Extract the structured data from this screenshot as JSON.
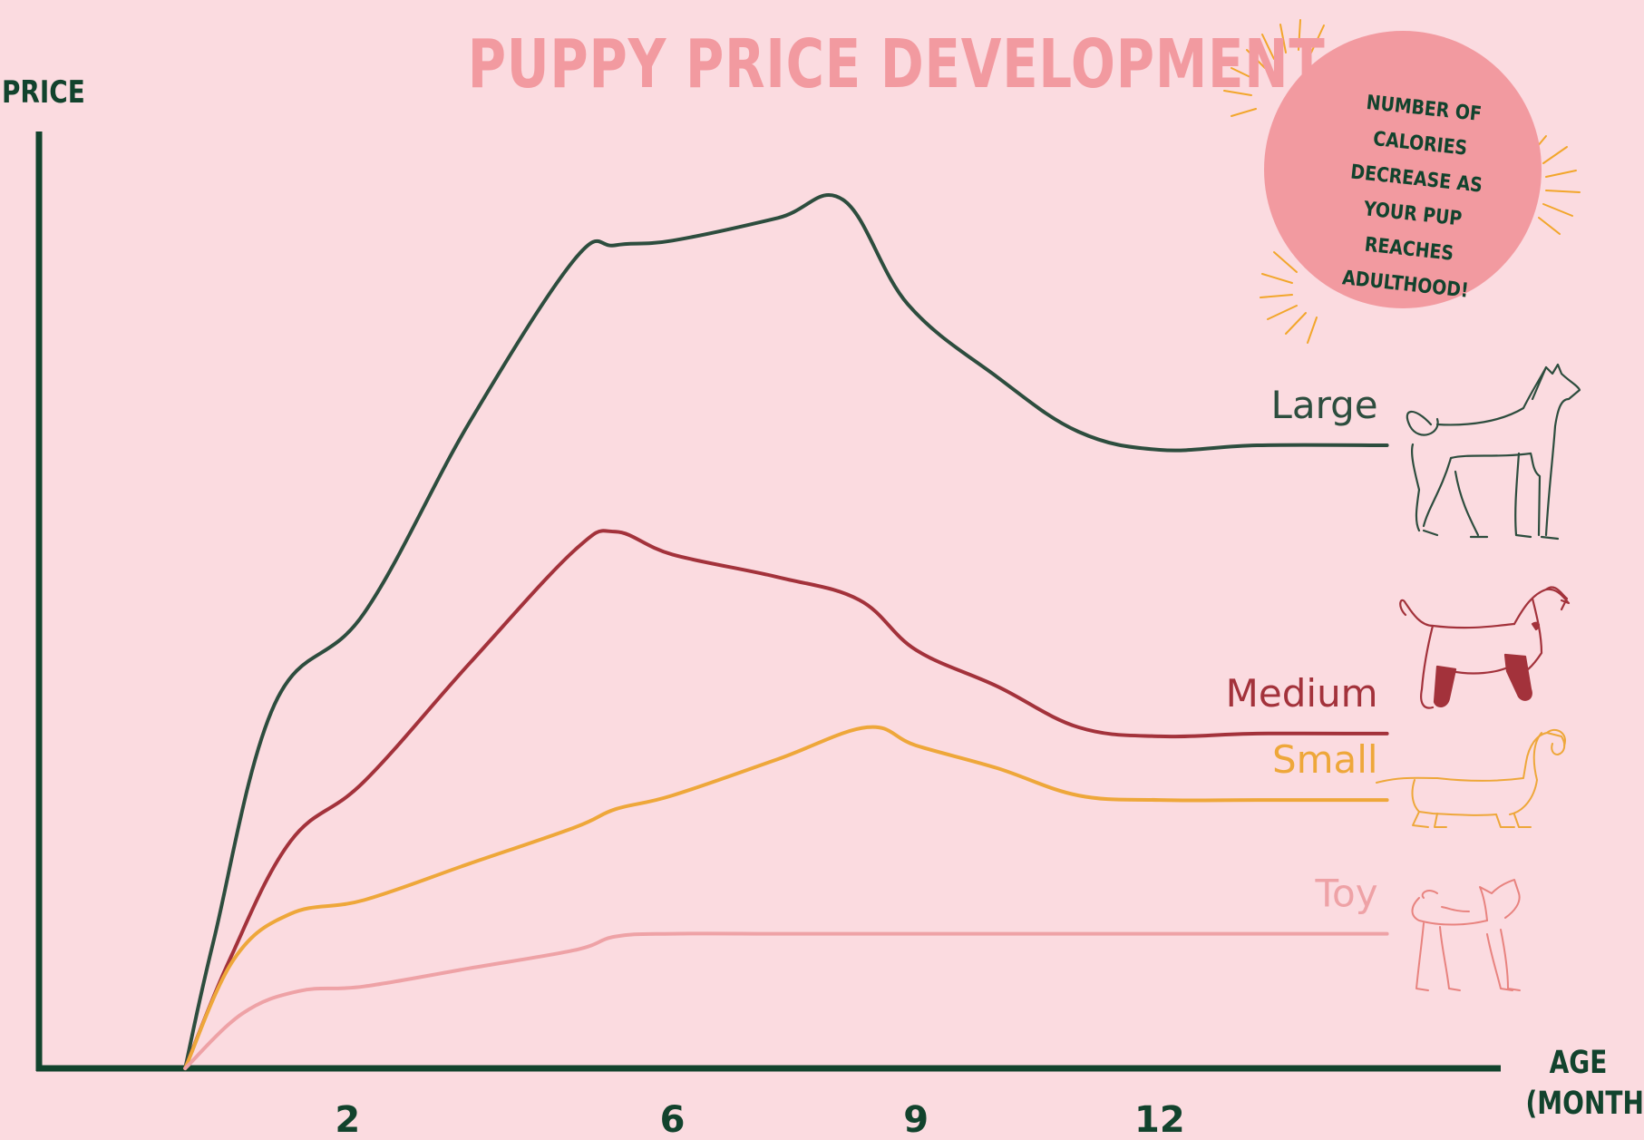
{
  "title": "PUPPY PRICE DEVELOPMENT",
  "callout": "NUMBER OF CALORIES DECREASE AS YOUR PUP REACHES ADULTHOOD!",
  "colors": {
    "background": "#fbdbe0",
    "axis": "#12432d",
    "title": "#f29aa0",
    "callout_circle": "#f29aa0",
    "sunburst": "#f2a62b"
  },
  "chart_data": {
    "type": "line",
    "xlabel": "AGE (MONTHS)",
    "ylabel": "PRICE",
    "x_ticks": [
      2,
      6,
      9,
      12
    ],
    "xlim": [
      -1.8,
      16.2
    ],
    "ylim": [
      0,
      1030
    ],
    "grid": false,
    "legend": "series labels at right end of lines, with dog illustrations",
    "series": [
      {
        "name": "Large",
        "color": "#2d4d3e",
        "icon": "large-dog-icon",
        "x": [
          0,
          0.35,
          1.1,
          2.2,
          3.5,
          4.8,
          5.3,
          6.0,
          7.3,
          8.1,
          8.9,
          10.0,
          11.0,
          12.0,
          13.2,
          14.8
        ],
        "y": [
          0,
          140,
          400,
          500,
          710,
          890,
          905,
          910,
          935,
          955,
          840,
          760,
          700,
          680,
          685,
          685
        ]
      },
      {
        "name": "Medium",
        "color": "#a3323b",
        "icon": "medium-dog-icon",
        "x": [
          0,
          0.55,
          1.3,
          2.2,
          3.5,
          4.8,
          5.3,
          6.0,
          7.3,
          8.3,
          9.0,
          10.0,
          11.0,
          12.0,
          13.2,
          14.8
        ],
        "y": [
          0,
          120,
          250,
          315,
          445,
          570,
          590,
          565,
          540,
          515,
          460,
          420,
          375,
          365,
          368,
          368
        ]
      },
      {
        "name": "Small",
        "color": "#eea73a",
        "icon": "small-dog-icon",
        "x": [
          0,
          0.6,
          1.3,
          2.2,
          3.5,
          4.8,
          5.3,
          6.0,
          7.3,
          8.4,
          9.0,
          10.0,
          11.0,
          12.0,
          13.2,
          14.8
        ],
        "y": [
          0,
          120,
          170,
          185,
          225,
          265,
          285,
          300,
          340,
          375,
          355,
          330,
          300,
          295,
          295,
          295
        ]
      },
      {
        "name": "Toy",
        "color": "#eea2a6",
        "icon": "toy-dog-icon",
        "x": [
          0,
          0.7,
          1.4,
          2.2,
          3.5,
          4.8,
          5.3,
          6.0,
          7.3,
          8.5,
          10.0,
          12.0,
          14.8
        ],
        "y": [
          0,
          60,
          85,
          90,
          110,
          130,
          145,
          148,
          148,
          148,
          148,
          148,
          148
        ]
      }
    ]
  }
}
